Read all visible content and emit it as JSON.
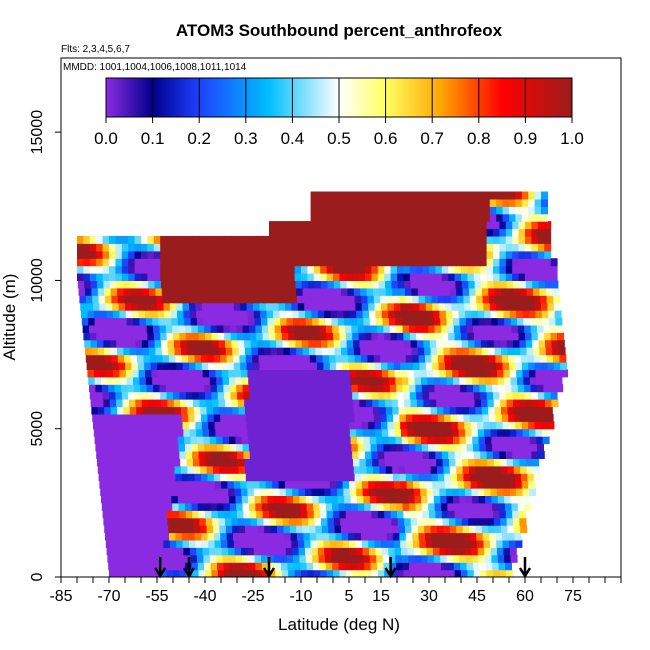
{
  "chart_data": {
    "type": "heatmap",
    "title": "ATOM3 Southbound percent_anthrofeox",
    "subtitle_flights": "Flts: 2,3,4,5,6,7",
    "subtitle_dates": "MMDD: 1001,1004,1006,1008,1011,1014",
    "xlabel": "Latitude (deg N)",
    "ylabel": "Altitude (m)",
    "xlim": [
      -85,
      90
    ],
    "ylim": [
      0,
      17500
    ],
    "x_ticks": [
      -85,
      -70,
      -55,
      -40,
      -25,
      -10,
      5,
      15,
      30,
      45,
      60,
      75
    ],
    "y_ticks": [
      0,
      5000,
      10000,
      15000
    ],
    "colorbar": {
      "range": [
        0.0,
        1.0
      ],
      "ticks": [
        "0.0",
        "0.1",
        "0.2",
        "0.3",
        "0.4",
        "0.5",
        "0.6",
        "0.7",
        "0.8",
        "0.9",
        "1.0"
      ],
      "colors": [
        "#8a2be2",
        "#00008b",
        "#1e40ff",
        "#00bfff",
        "#ffffff",
        "#ffff60",
        "#ffa500",
        "#ff0000",
        "#9b1c1c"
      ]
    },
    "profile_markers_lat": [
      -54,
      -45,
      -20,
      18,
      60
    ],
    "field_description_values": {
      "upper_layer_value": 1.0,
      "low_altitude_southern_value": 0.0
    }
  }
}
